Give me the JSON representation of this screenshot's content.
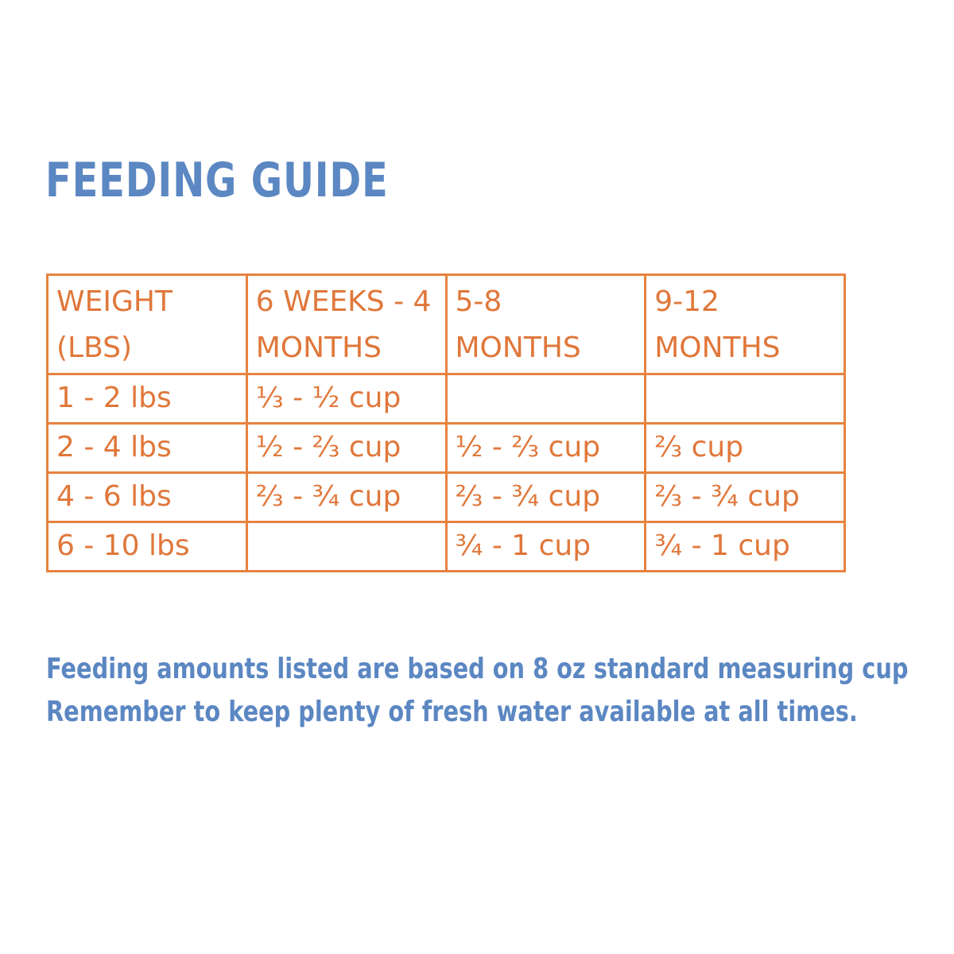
{
  "title": "FEEDING GUIDE",
  "table": {
    "headers": [
      [
        "WEIGHT",
        "(LBS)"
      ],
      [
        "6 WEEKS - 4",
        "MONTHS"
      ],
      [
        "5-8",
        "MONTHS"
      ],
      [
        "9-12",
        "MONTHS"
      ]
    ],
    "rows": [
      [
        "1 - 2 lbs",
        "⅓ - ½ cup",
        "",
        ""
      ],
      [
        "2 - 4 lbs",
        "½ - ⅔ cup",
        "½ - ⅔ cup",
        "⅔ cup"
      ],
      [
        "4 - 6 lbs",
        "⅔ - ¾ cup",
        "⅔ - ¾ cup",
        "⅔ - ¾ cup"
      ],
      [
        "6 - 10 lbs",
        "",
        "¾ - 1 cup",
        "¾ - 1 cup"
      ]
    ]
  },
  "notes": {
    "line1": "Feeding amounts listed are based on 8 oz standard measuring cup",
    "line2": "Remember to keep plenty of fresh water available at all times."
  },
  "colors": {
    "title_blue": "#5b87c2",
    "table_orange": "#e8823f"
  }
}
